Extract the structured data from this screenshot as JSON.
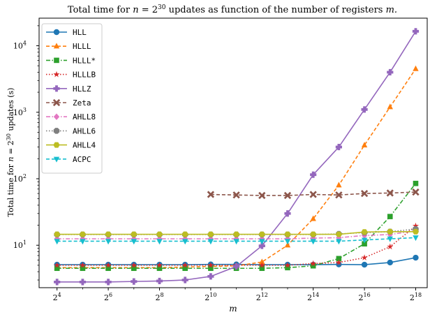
{
  "chart_data": {
    "type": "line",
    "title_pre": "Total time for ",
    "title_math": "n",
    "title_mid": " = 2",
    "title_sup": "30",
    "title_post": " updates as function of the number of registers ",
    "title_end": "m.",
    "xlabel": "m",
    "ylabel_pre": "Total time for ",
    "ylabel_math": "n",
    "ylabel_mid": " = 2",
    "ylabel_sup": "30",
    "ylabel_post": " updates (s)",
    "x_scale": "log2",
    "y_scale": "log10",
    "xlim_log2": [
      3.3,
      18.45
    ],
    "ylim": [
      2.3,
      26000
    ],
    "x_ticks": [
      {
        "base": "2",
        "exp": "4",
        "log2": 4
      },
      {
        "base": "2",
        "exp": "6",
        "log2": 6
      },
      {
        "base": "2",
        "exp": "8",
        "log2": 8
      },
      {
        "base": "2",
        "exp": "10",
        "log2": 10
      },
      {
        "base": "2",
        "exp": "12",
        "log2": 12
      },
      {
        "base": "2",
        "exp": "14",
        "log2": 14
      },
      {
        "base": "2",
        "exp": "16",
        "log2": 16
      },
      {
        "base": "2",
        "exp": "18",
        "log2": 18
      }
    ],
    "y_ticks": [
      {
        "base": "10",
        "exp": "1",
        "value": 10
      },
      {
        "base": "10",
        "exp": "2",
        "value": 100
      },
      {
        "base": "10",
        "exp": "3",
        "value": 1000
      },
      {
        "base": "10",
        "exp": "4",
        "value": 10000
      }
    ],
    "legend_position": "upper-left",
    "series": [
      {
        "name": "HLL",
        "color": "#1f77b4",
        "marker": "circle",
        "dash": "solid",
        "x": [
          16,
          32,
          64,
          128,
          256,
          512,
          1024,
          2048,
          4096,
          8192,
          16384,
          32768,
          65536,
          131072,
          262144
        ],
        "y": [
          5.1,
          5.1,
          5.1,
          5.1,
          5.1,
          5.1,
          5.15,
          5.15,
          5.1,
          5.1,
          5.1,
          5.15,
          5.1,
          5.5,
          6.5
        ]
      },
      {
        "name": "HLLL",
        "color": "#ff7f0e",
        "marker": "triangle-up",
        "dash": "dashed",
        "x": [
          16,
          32,
          64,
          128,
          256,
          512,
          1024,
          2048,
          4096,
          8192,
          16384,
          32768,
          65536,
          131072,
          262144
        ],
        "y": [
          4.6,
          4.6,
          4.6,
          4.6,
          4.6,
          4.7,
          4.8,
          4.9,
          5.6,
          10,
          25,
          80,
          320,
          1200,
          4500
        ]
      },
      {
        "name": "HLLL*",
        "color": "#2ca02c",
        "marker": "square",
        "dash": "dashdot",
        "x": [
          16,
          32,
          64,
          128,
          256,
          512,
          1024,
          2048,
          4096,
          8192,
          16384,
          32768,
          65536,
          131072,
          262144
        ],
        "y": [
          4.5,
          4.5,
          4.5,
          4.5,
          4.5,
          4.5,
          4.5,
          4.5,
          4.5,
          4.6,
          4.9,
          6.3,
          10.5,
          27,
          85
        ]
      },
      {
        "name": "HLLLB",
        "color": "#d62728",
        "marker": "star",
        "dash": "dotted",
        "x": [
          16,
          32,
          64,
          128,
          256,
          512,
          1024,
          2048,
          4096,
          8192,
          16384,
          32768,
          65536,
          131072,
          262144
        ],
        "y": [
          5.0,
          5.0,
          5.0,
          5.0,
          5.0,
          5.0,
          5.0,
          5.0,
          5.0,
          5.0,
          5.3,
          5.5,
          6.5,
          9.5,
          19.5
        ]
      },
      {
        "name": "HLLZ",
        "color": "#9467bd",
        "marker": "plus",
        "dash": "solid",
        "x": [
          16,
          32,
          64,
          128,
          256,
          512,
          1024,
          2048,
          4096,
          8192,
          16384,
          32768,
          65536,
          131072,
          262144
        ],
        "y": [
          2.8,
          2.8,
          2.8,
          2.85,
          2.9,
          3.0,
          3.4,
          4.8,
          9.8,
          30,
          115,
          300,
          1100,
          4000,
          16500
        ]
      },
      {
        "name": "Zeta",
        "color": "#8c564b",
        "marker": "x",
        "dash": "dashed",
        "x": [
          1024,
          2048,
          4096,
          8192,
          16384,
          32768,
          65536,
          131072,
          262144
        ],
        "y": [
          58,
          57,
          56,
          56,
          58,
          57,
          60,
          61,
          63
        ]
      },
      {
        "name": "AHLL8",
        "color": "#e377c2",
        "marker": "diamond",
        "dash": "dashdot",
        "x": [
          16,
          32,
          64,
          128,
          256,
          512,
          1024,
          2048,
          4096,
          8192,
          16384,
          32768,
          65536,
          131072,
          262144
        ],
        "y": [
          12.5,
          12.5,
          12.5,
          12.5,
          12.5,
          12.5,
          12.5,
          12.5,
          12.5,
          12.5,
          12.8,
          13.0,
          14.0,
          14.5,
          16.5
        ]
      },
      {
        "name": "AHLL6",
        "color": "#7f7f7f",
        "marker": "octagon",
        "dash": "dotted",
        "x": [
          16,
          32,
          64,
          128,
          256,
          512,
          1024,
          2048,
          4096,
          8192,
          16384,
          32768,
          65536,
          131072,
          262144
        ],
        "y": [
          14.5,
          14.5,
          14.5,
          14.5,
          14.5,
          14.5,
          14.5,
          14.5,
          14.5,
          14.5,
          14.5,
          14.8,
          15.5,
          16.0,
          17.5
        ]
      },
      {
        "name": "AHLL4",
        "color": "#bcbd22",
        "marker": "hexagon",
        "dash": "solid",
        "x": [
          16,
          32,
          64,
          128,
          256,
          512,
          1024,
          2048,
          4096,
          8192,
          16384,
          32768,
          65536,
          131072,
          262144
        ],
        "y": [
          14.6,
          14.6,
          14.6,
          14.6,
          14.6,
          14.6,
          14.6,
          14.6,
          14.6,
          14.6,
          14.6,
          14.6,
          15.8,
          16.0,
          16.0
        ]
      },
      {
        "name": "ACPC",
        "color": "#17becf",
        "marker": "triangle-down",
        "dash": "dashed",
        "x": [
          16,
          32,
          64,
          128,
          256,
          512,
          1024,
          2048,
          4096,
          8192,
          16384,
          32768,
          65536,
          131072,
          262144
        ],
        "y": [
          11.5,
          11.5,
          11.5,
          11.5,
          11.5,
          11.5,
          11.5,
          11.5,
          11.5,
          11.5,
          11.5,
          11.5,
          12.0,
          12.5,
          13.0
        ]
      }
    ]
  }
}
